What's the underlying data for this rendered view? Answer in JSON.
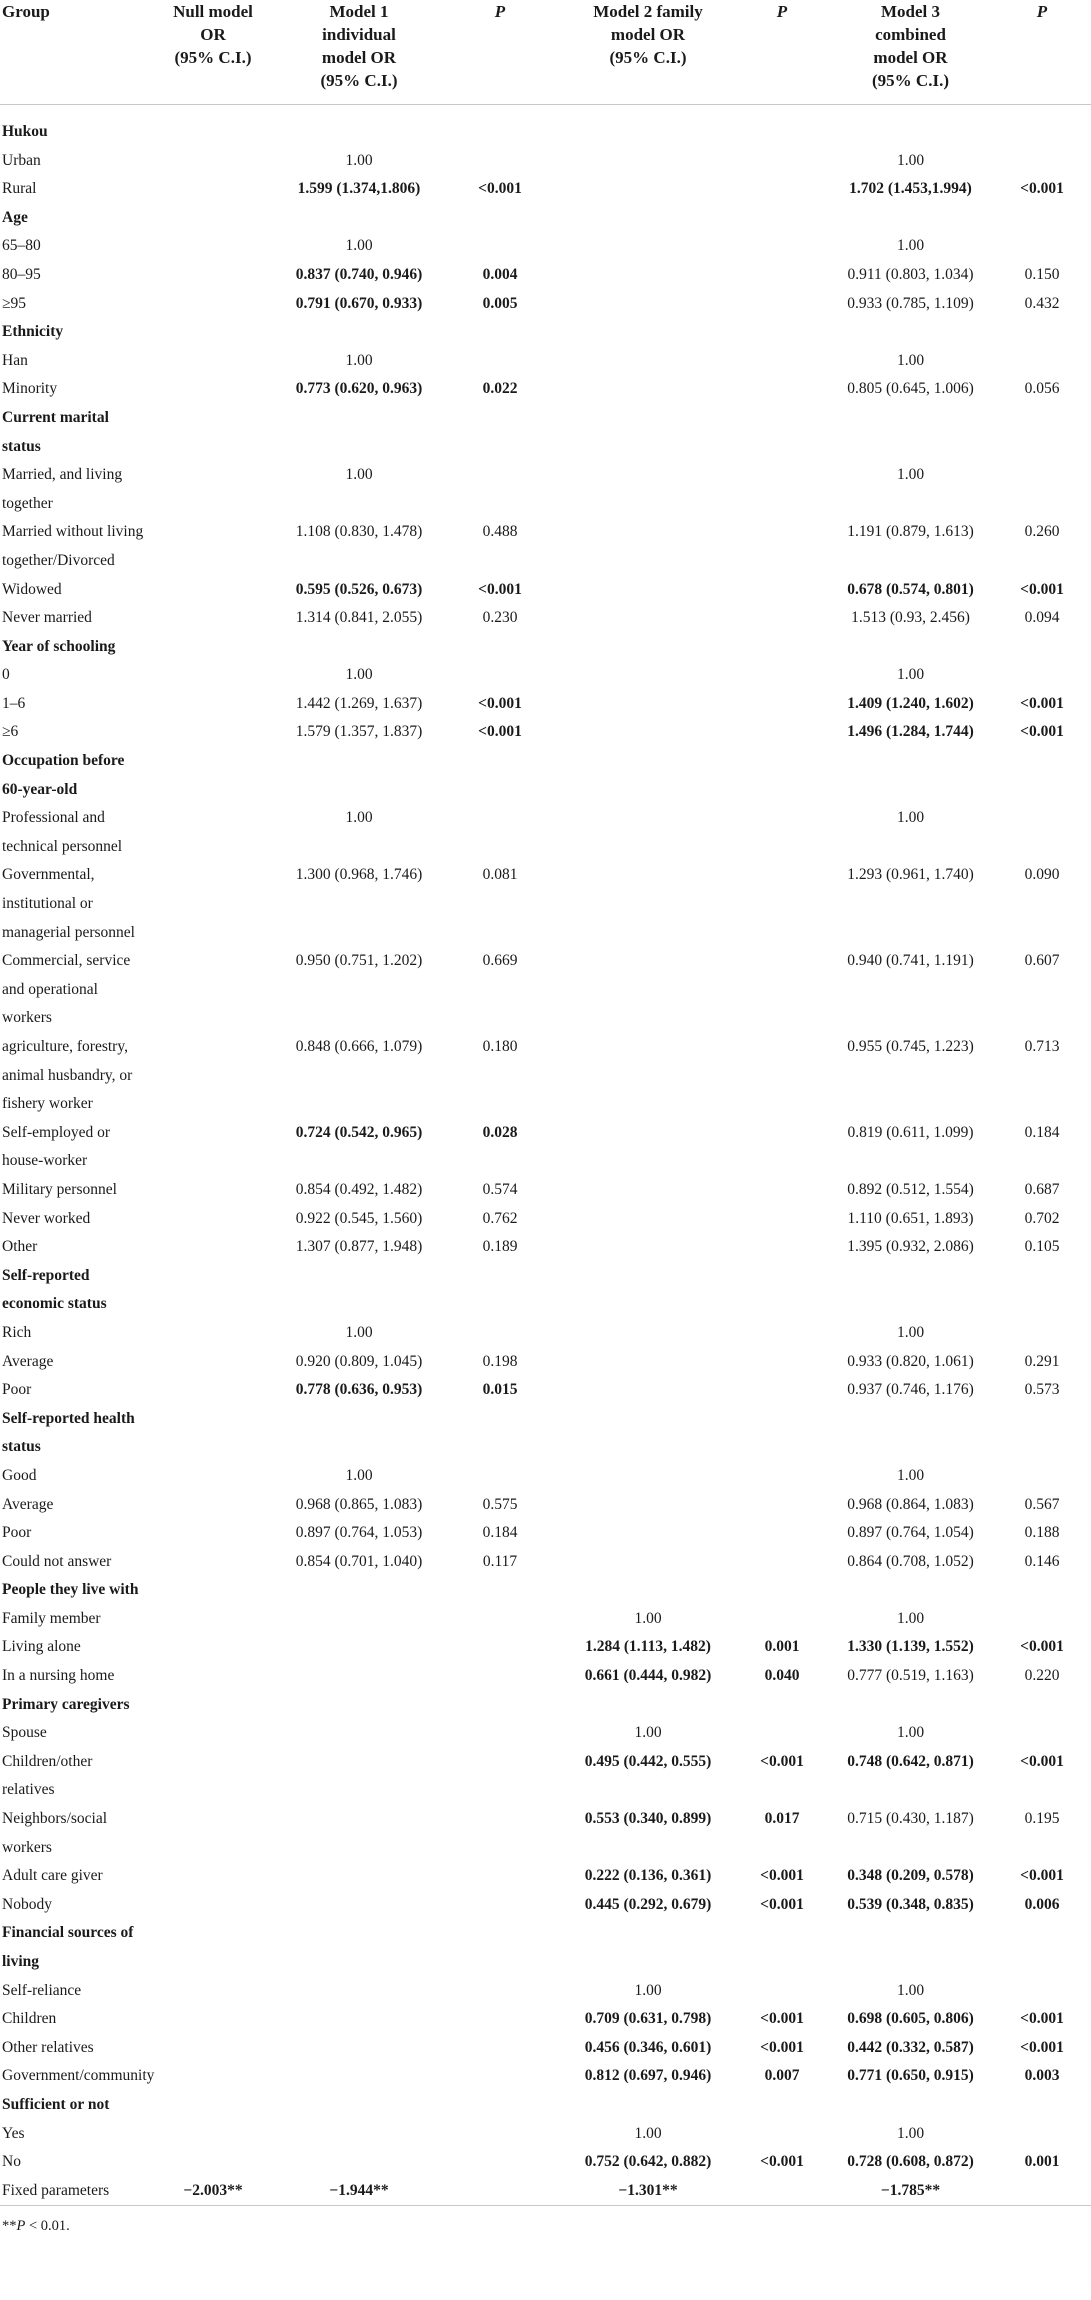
{
  "header": {
    "group": "Group",
    "null_model": [
      "Null model",
      "OR",
      "(95% C.I.)"
    ],
    "model1": [
      "Model 1",
      "individual",
      "model OR",
      "(95% C.I.)"
    ],
    "p1": "P",
    "model2": [
      "Model 2 family",
      "model OR",
      "(95% C.I.)"
    ],
    "p2": "P",
    "model3": [
      "Model 3",
      "combined",
      "model OR",
      "(95% C.I.)"
    ],
    "p3": "P"
  },
  "rows": [
    {
      "type": "section",
      "name": "Hukou"
    },
    {
      "name": "Urban",
      "m1": "1.00",
      "m3": "1.00"
    },
    {
      "name": "Rural",
      "m1": "1.599 (1.374,1.806)",
      "p1": "<0.001",
      "m3": "1.702 (1.453,1.994)",
      "p3": "<0.001",
      "b1": true,
      "b3": true
    },
    {
      "type": "section",
      "name": "Age"
    },
    {
      "name": "65–80",
      "m1": "1.00",
      "m3": "1.00"
    },
    {
      "name": "80–95",
      "m1": "0.837 (0.740, 0.946)",
      "p1": "0.004",
      "m3": "0.911 (0.803, 1.034)",
      "p3": "0.150",
      "b1": true
    },
    {
      "name": "≥95",
      "m1": "0.791 (0.670, 0.933)",
      "p1": "0.005",
      "m3": "0.933 (0.785, 1.109)",
      "p3": "0.432",
      "b1": true
    },
    {
      "type": "section",
      "name": "Ethnicity"
    },
    {
      "name": "Han",
      "m1": "1.00",
      "m3": "1.00"
    },
    {
      "name": "Minority",
      "m1": "0.773 (0.620, 0.963)",
      "p1": "0.022",
      "m3": "0.805 (0.645, 1.006)",
      "p3": "0.056",
      "b1": true
    },
    {
      "type": "section",
      "name": "Current marital status"
    },
    {
      "name": "Married, and living together",
      "m1": "1.00",
      "m3": "1.00"
    },
    {
      "name": "Married without living together/Divorced",
      "m1": "1.108 (0.830, 1.478)",
      "p1": "0.488",
      "m3": "1.191 (0.879, 1.613)",
      "p3": "0.260"
    },
    {
      "name": "Widowed",
      "m1": "0.595 (0.526, 0.673)",
      "p1": "<0.001",
      "m3": "0.678 (0.574, 0.801)",
      "p3": "<0.001",
      "b1": true,
      "b3": true
    },
    {
      "name": "Never married",
      "m1": "1.314 (0.841, 2.055)",
      "p1": "0.230",
      "m3": "1.513 (0.93, 2.456)",
      "p3": "0.094"
    },
    {
      "type": "section",
      "name": "Year of schooling"
    },
    {
      "name": "0",
      "m1": "1.00",
      "m3": "1.00"
    },
    {
      "name": "1–6",
      "m1": "1.442 (1.269, 1.637)",
      "p1": "<0.001",
      "m3": "1.409 (1.240, 1.602)",
      "p3": "<0.001",
      "bp1": true,
      "b3": true
    },
    {
      "name": "≥6",
      "m1": "1.579 (1.357, 1.837)",
      "p1": "<0.001",
      "m3": "1.496 (1.284, 1.744)",
      "p3": "<0.001",
      "bp1": true,
      "b3": true
    },
    {
      "type": "section",
      "name": "Occupation before 60-year-old"
    },
    {
      "name": "Professional and technical personnel",
      "m1": "1.00",
      "m3": "1.00"
    },
    {
      "name": "Governmental, institutional or managerial personnel",
      "m1": "1.300 (0.968, 1.746)",
      "p1": "0.081",
      "m3": "1.293 (0.961, 1.740)",
      "p3": "0.090"
    },
    {
      "name": "Commercial, service and operational workers",
      "m1": "0.950 (0.751, 1.202)",
      "p1": "0.669",
      "m3": "0.940 (0.741, 1.191)",
      "p3": "0.607"
    },
    {
      "name": "agriculture, forestry, animal husbandry, or fishery worker",
      "m1": "0.848 (0.666, 1.079)",
      "p1": "0.180",
      "m3": "0.955 (0.745, 1.223)",
      "p3": "0.713"
    },
    {
      "name": "Self-employed or house-worker",
      "m1": "0.724 (0.542, 0.965)",
      "p1": "0.028",
      "m3": "0.819 (0.611, 1.099)",
      "p3": "0.184",
      "b1": true
    },
    {
      "name": "Military personnel",
      "m1": "0.854 (0.492, 1.482)",
      "p1": "0.574",
      "m3": "0.892 (0.512, 1.554)",
      "p3": "0.687"
    },
    {
      "name": "Never worked",
      "m1": "0.922 (0.545, 1.560)",
      "p1": "0.762",
      "m3": "1.110 (0.651, 1.893)",
      "p3": "0.702"
    },
    {
      "name": "Other",
      "m1": "1.307 (0.877, 1.948)",
      "p1": "0.189",
      "m3": "1.395 (0.932, 2.086)",
      "p3": "0.105"
    },
    {
      "type": "section",
      "name": "Self-reported economic status"
    },
    {
      "name": "Rich",
      "m1": "1.00",
      "m3": "1.00"
    },
    {
      "name": "Average",
      "m1": "0.920 (0.809, 1.045)",
      "p1": "0.198",
      "m3": "0.933 (0.820, 1.061)",
      "p3": "0.291"
    },
    {
      "name": "Poor",
      "m1": "0.778 (0.636, 0.953)",
      "p1": "0.015",
      "m3": "0.937 (0.746, 1.176)",
      "p3": "0.573",
      "b1": true
    },
    {
      "type": "section",
      "name": "Self-reported health status"
    },
    {
      "name": "Good",
      "m1": "1.00",
      "m3": "1.00"
    },
    {
      "name": "Average",
      "m1": "0.968 (0.865, 1.083)",
      "p1": "0.575",
      "m3": "0.968 (0.864, 1.083)",
      "p3": "0.567"
    },
    {
      "name": "Poor",
      "m1": "0.897 (0.764, 1.053)",
      "p1": "0.184",
      "m3": "0.897 (0.764, 1.054)",
      "p3": "0.188"
    },
    {
      "name": "Could not answer",
      "m1": "0.854 (0.701, 1.040)",
      "p1": "0.117",
      "m3": "0.864 (0.708, 1.052)",
      "p3": "0.146"
    },
    {
      "type": "section",
      "name": "People they live with"
    },
    {
      "name": "Family member",
      "m2": "1.00",
      "m3": "1.00"
    },
    {
      "name": "Living alone",
      "m2": "1.284 (1.113, 1.482)",
      "p2": "0.001",
      "m3": "1.330 (1.139, 1.552)",
      "p3": "<0.001",
      "b2": true,
      "b3": true
    },
    {
      "name": "In a nursing home",
      "m2": "0.661 (0.444, 0.982)",
      "p2": "0.040",
      "m3": "0.777 (0.519, 1.163)",
      "p3": "0.220",
      "b2": true
    },
    {
      "type": "section",
      "name": "Primary caregivers"
    },
    {
      "name": "Spouse",
      "m2": "1.00",
      "m3": "1.00"
    },
    {
      "name": "Children/other relatives",
      "m2": "0.495 (0.442, 0.555)",
      "p2": "<0.001",
      "m3": "0.748 (0.642, 0.871)",
      "p3": "<0.001",
      "b2": true,
      "b3": true
    },
    {
      "name": "Neighbors/social workers",
      "m2": "0.553 (0.340, 0.899)",
      "p2": "0.017",
      "m3": "0.715 (0.430, 1.187)",
      "p3": "0.195",
      "b2": true
    },
    {
      "name": "Adult care giver",
      "m2": "0.222 (0.136, 0.361)",
      "p2": "<0.001",
      "m3": "0.348 (0.209, 0.578)",
      "p3": "<0.001",
      "b2": true,
      "b3": true
    },
    {
      "name": "Nobody",
      "m2": "0.445 (0.292, 0.679)",
      "p2": "<0.001",
      "m3": "0.539 (0.348, 0.835)",
      "p3": "0.006",
      "b2": true,
      "b3": true
    },
    {
      "type": "section",
      "name": "Financial sources of living"
    },
    {
      "name": "Self-reliance",
      "m2": "1.00",
      "m3": "1.00"
    },
    {
      "name": "Children",
      "m2": "0.709 (0.631, 0.798)",
      "p2": "<0.001",
      "m3": "0.698 (0.605, 0.806)",
      "p3": "<0.001",
      "b2": true,
      "b3": true
    },
    {
      "name": "Other relatives",
      "m2": "0.456 (0.346, 0.601)",
      "p2": "<0.001",
      "m3": "0.442 (0.332, 0.587)",
      "p3": "<0.001",
      "b2": true,
      "b3": true
    },
    {
      "name": "Government/community",
      "m2": "0.812 (0.697, 0.946)",
      "p2": "0.007",
      "m3": "0.771 (0.650, 0.915)",
      "p3": "0.003",
      "b2": true,
      "b3": true
    },
    {
      "type": "section",
      "name": "Sufficient or not"
    },
    {
      "name": "Yes",
      "m2": "1.00",
      "m3": "1.00"
    },
    {
      "name": "No",
      "m2": "0.752 (0.642, 0.882)",
      "p2": "<0.001",
      "m3": "0.728 (0.608, 0.872)",
      "p3": "0.001",
      "b2": true,
      "b3": true
    },
    {
      "type": "fixed",
      "name": "Fixed parameters",
      "m0": "−2.003**",
      "m1": "−1.944**",
      "m2": "−1.301**",
      "m3": "−1.785**"
    }
  ],
  "footnote": {
    "stars": "**",
    "p": "P",
    "rest": " < 0.01."
  }
}
